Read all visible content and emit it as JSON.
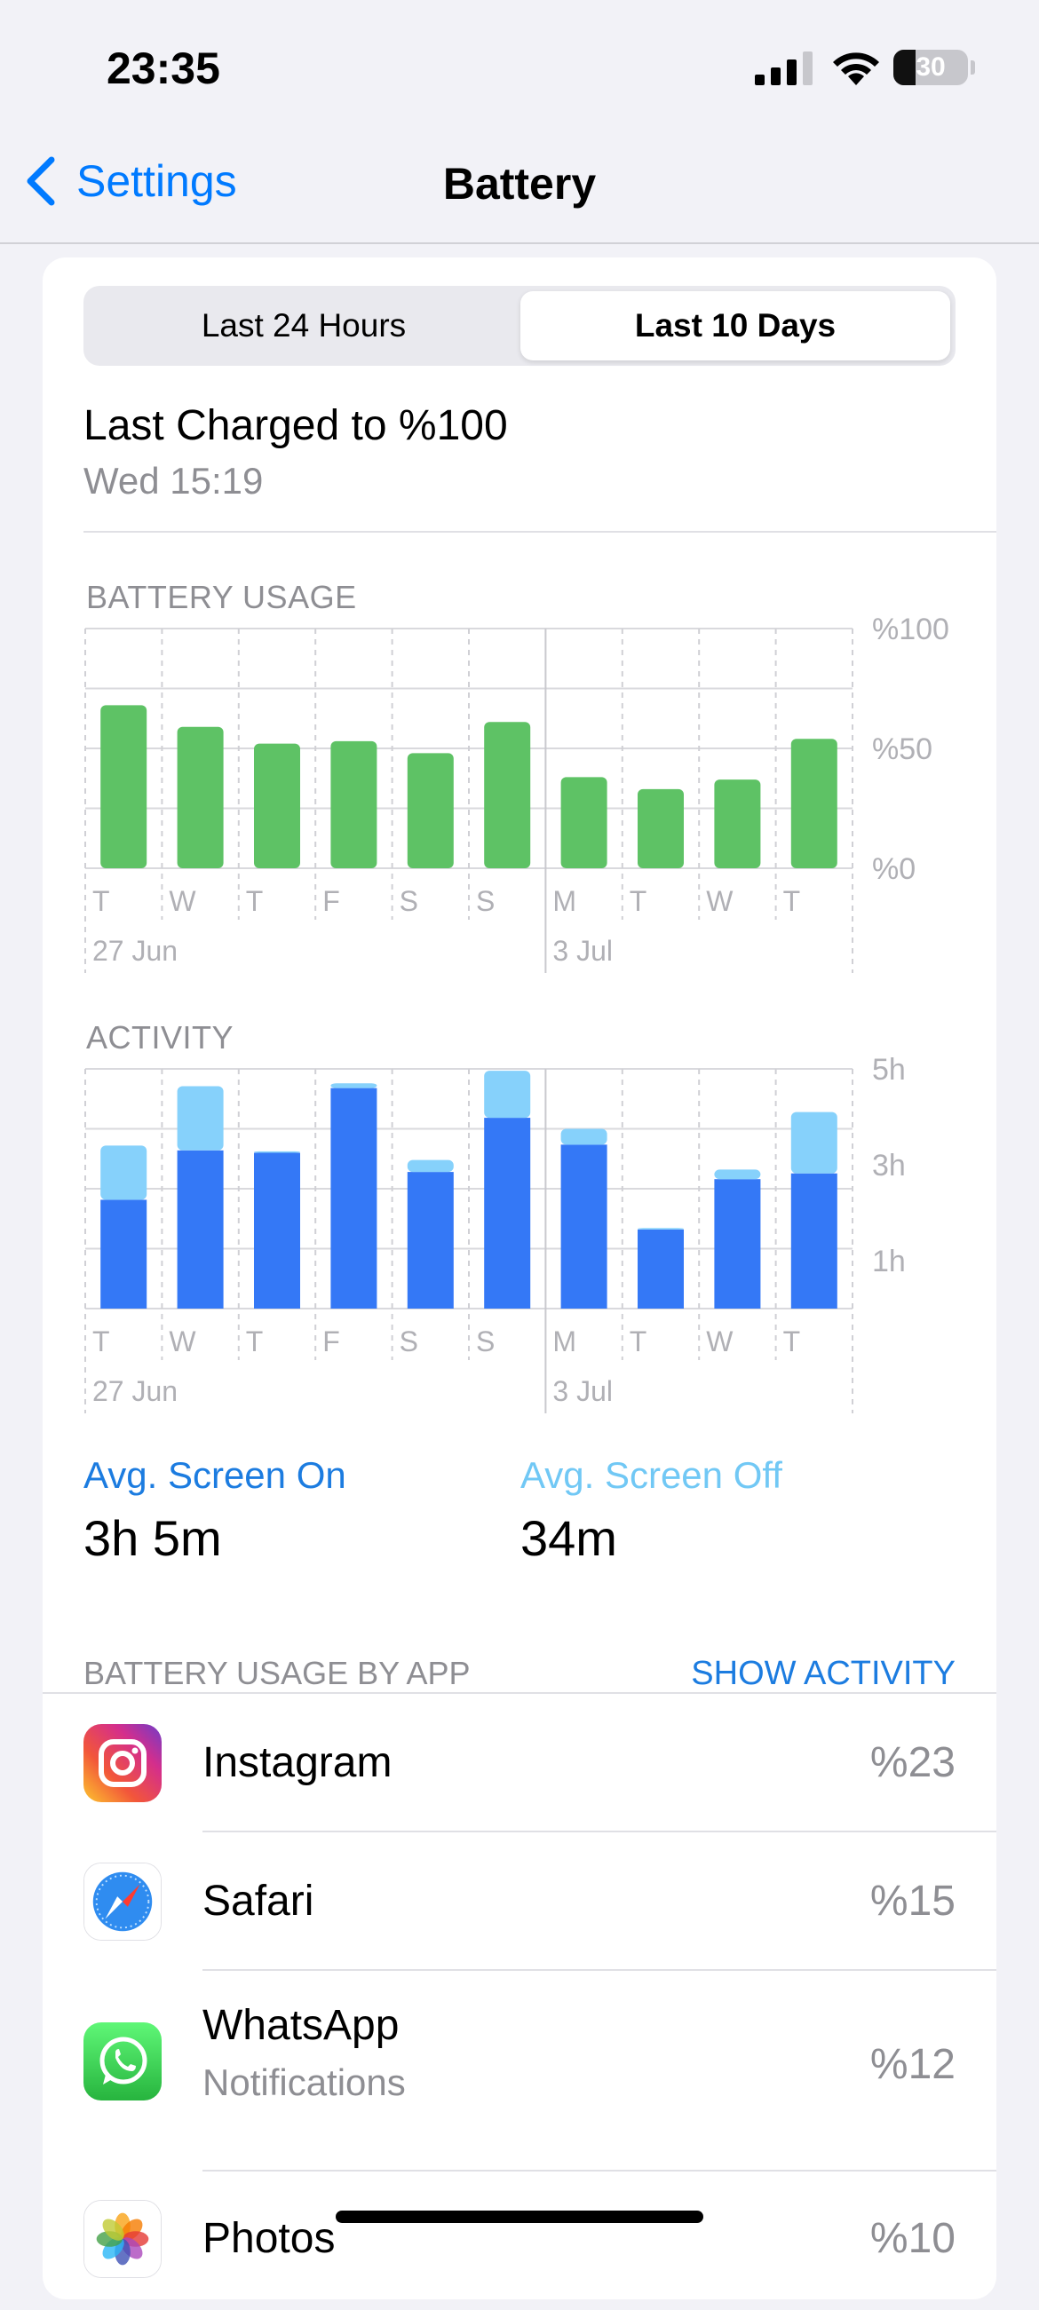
{
  "status_bar": {
    "time": "23:35",
    "battery_level": "30"
  },
  "nav": {
    "back_label": "Settings",
    "title": "Battery"
  },
  "segments": {
    "left": "Last 24 Hours",
    "right": "Last 10 Days",
    "selected": "Last 10 Days"
  },
  "last_charged": {
    "title": "Last Charged to %100",
    "subtitle": "Wed 15:19"
  },
  "battery_usage": {
    "label": "BATTERY USAGE"
  },
  "activity": {
    "label": "ACTIVITY"
  },
  "averages": {
    "screen_on_label": "Avg. Screen On",
    "screen_on_value": "3h 5m",
    "screen_off_label": "Avg. Screen Off",
    "screen_off_value": "34m"
  },
  "apps_section": {
    "header": "BATTERY USAGE BY APP",
    "action": "SHOW ACTIVITY"
  },
  "apps": [
    {
      "name": "Instagram",
      "sub": "",
      "pct": "%23",
      "icon": "instagram-icon"
    },
    {
      "name": "Safari",
      "sub": "",
      "pct": "%15",
      "icon": "safari-icon"
    },
    {
      "name": "WhatsApp",
      "sub": "Notifications",
      "pct": "%12",
      "icon": "whatsapp-icon"
    },
    {
      "name": "Photos",
      "sub": "",
      "pct": "%10",
      "icon": "photos-icon"
    }
  ],
  "colors": {
    "accent": "#1c7ce0",
    "battery_bar": "#5ec265",
    "screen_on": "#3478f6",
    "screen_off": "#86d1fb"
  },
  "chart_data": [
    {
      "type": "bar",
      "title": "BATTERY USAGE",
      "categories": [
        "T",
        "W",
        "T",
        "F",
        "S",
        "S",
        "M",
        "T",
        "W",
        "T"
      ],
      "date_labels": [
        "27 Jun",
        "3 Jul"
      ],
      "y_ticks": [
        "%100",
        "%50",
        "%0"
      ],
      "ylim": [
        0,
        100
      ],
      "grid": true,
      "series": [
        {
          "values": [
            68,
            59,
            52,
            53,
            48,
            61,
            38,
            33,
            37,
            54
          ]
        }
      ]
    },
    {
      "type": "bar",
      "stacked": true,
      "title": "ACTIVITY",
      "categories": [
        "T",
        "W",
        "T",
        "F",
        "S",
        "S",
        "M",
        "T",
        "W",
        "T"
      ],
      "date_labels": [
        "27 Jun",
        "3 Jul"
      ],
      "y_ticks": [
        "5h",
        "3h",
        "1h"
      ],
      "ylim": [
        0,
        5
      ],
      "grid": true,
      "series": [
        {
          "name": "Avg. Screen On",
          "values": [
            2.27,
            3.3,
            3.25,
            4.6,
            2.85,
            3.98,
            3.42,
            1.65,
            2.7,
            2.82
          ]
        },
        {
          "name": "Avg. Screen Off",
          "values": [
            1.13,
            1.34,
            0.03,
            0.1,
            0.25,
            0.98,
            0.33,
            0.03,
            0.2,
            1.28
          ]
        }
      ]
    }
  ]
}
